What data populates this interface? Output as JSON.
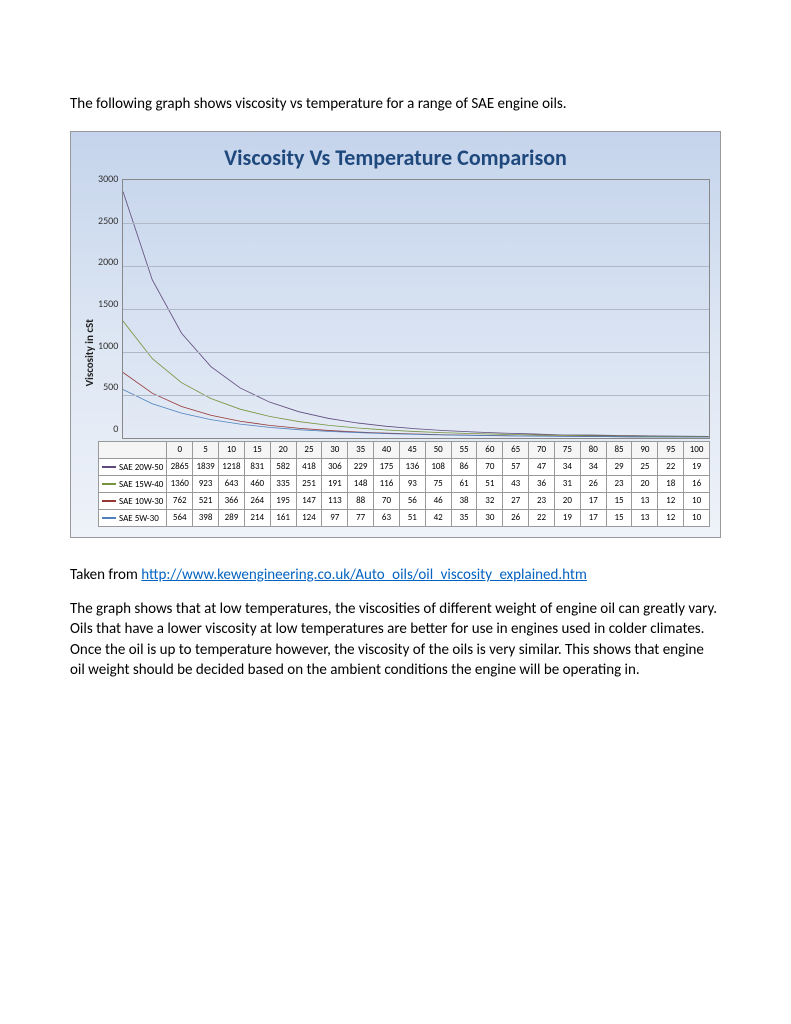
{
  "intro": "The following graph shows viscosity vs temperature for a range of SAE engine oils.",
  "chart": {
    "type": "line",
    "title": "Viscosity Vs Temperature Comparison",
    "title_fontsize": 22,
    "title_color": "#1f497d",
    "y_label": "Viscosity in cSt",
    "background_gradient": [
      "#c5d4ec",
      "#eef2f9"
    ],
    "plot_bg_gradient": [
      "#c9d7ed",
      "#e3eaf5"
    ],
    "grid_color": "#b0b8c8",
    "border_color": "#888888",
    "ylim": [
      0,
      3000
    ],
    "ytick_step": 500,
    "yticks": [
      "3000",
      "2500",
      "2000",
      "1500",
      "1000",
      "500",
      "0"
    ],
    "x_categories": [
      "0",
      "5",
      "10",
      "15",
      "20",
      "25",
      "30",
      "35",
      "40",
      "45",
      "50",
      "55",
      "60",
      "65",
      "70",
      "75",
      "80",
      "85",
      "90",
      "95",
      "100"
    ],
    "label_fontsize": 10,
    "line_width": 2,
    "series": [
      {
        "name": "SAE 20W-50",
        "color": "#604a7b",
        "values": [
          2865,
          1839,
          1218,
          831,
          582,
          418,
          306,
          229,
          175,
          136,
          108,
          86,
          70,
          57,
          47,
          34,
          34,
          29,
          25,
          22,
          19
        ]
      },
      {
        "name": "SAE 15W-40",
        "color": "#77933c",
        "values": [
          1360,
          923,
          643,
          460,
          335,
          251,
          191,
          148,
          116,
          93,
          75,
          61,
          51,
          43,
          36,
          31,
          26,
          23,
          20,
          18,
          16
        ]
      },
      {
        "name": "SAE 10W-30",
        "color": "#953735",
        "values": [
          762,
          521,
          366,
          264,
          195,
          147,
          113,
          88,
          70,
          56,
          46,
          38,
          32,
          27,
          23,
          20,
          17,
          15,
          13,
          12,
          10
        ]
      },
      {
        "name": "SAE 5W-30",
        "color": "#4f81bd",
        "values": [
          564,
          398,
          289,
          214,
          161,
          124,
          97,
          77,
          63,
          51,
          42,
          35,
          30,
          26,
          22,
          19,
          17,
          15,
          13,
          12,
          10
        ]
      }
    ]
  },
  "source_prefix": "Taken from ",
  "source_url": "http://www.kewengineering.co.uk/Auto_oils/oil_viscosity_explained.htm",
  "body": "The graph shows that at low temperatures, the viscosities of different weight of engine oil can greatly vary.  Oils that have a lower viscosity at low temperatures are better for use in engines used in colder climates.  Once the oil is up to temperature however, the viscosity of the oils is very similar.  This shows that engine oil weight should be decided based on the ambient conditions the engine will be operating in."
}
